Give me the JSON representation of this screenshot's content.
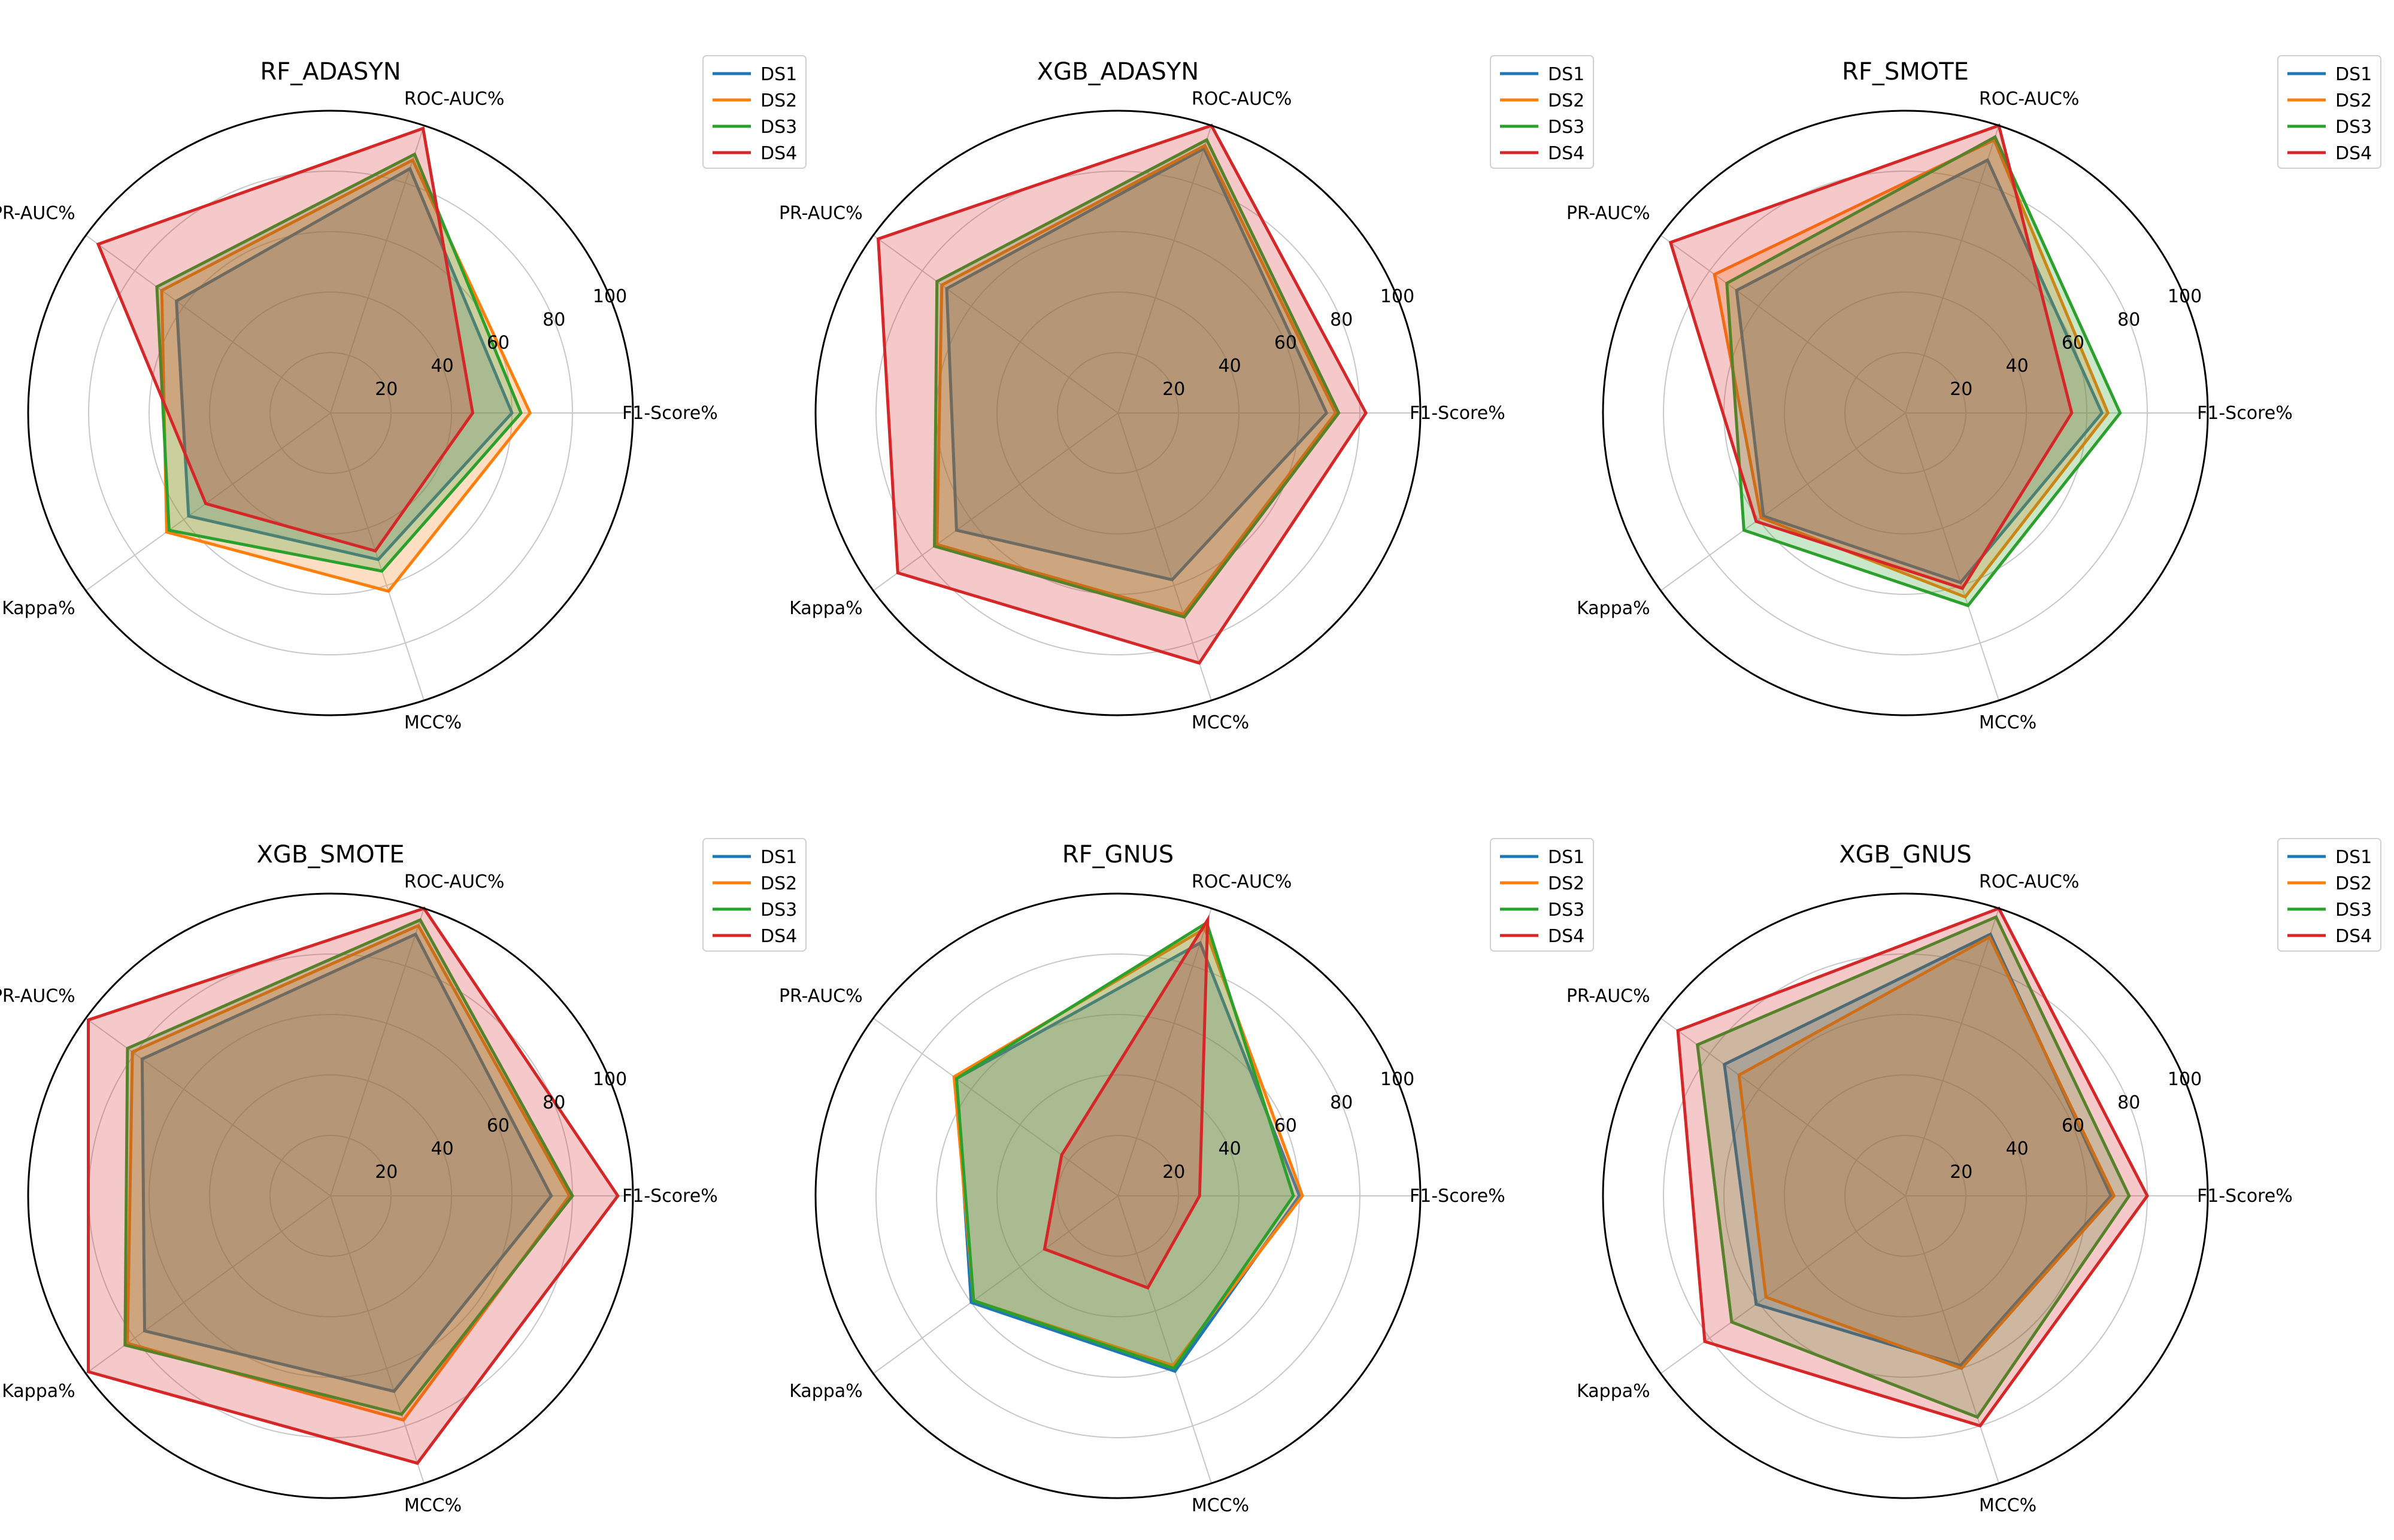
{
  "figure": {
    "legend_labels": [
      "DS1",
      "DS2",
      "DS3",
      "DS4"
    ],
    "series_colors": [
      "#1f77b4",
      "#ff7f0e",
      "#2ca02c",
      "#d62728"
    ],
    "radial_ticks": [
      "20",
      "40",
      "60",
      "80",
      "100"
    ]
  },
  "chart_data": [
    {
      "type": "radar",
      "title": "RF_ADASYN",
      "categories": [
        "F1-Score%",
        "ROC-AUC%",
        "PR-AUC%",
        "Kappa%",
        "MCC%"
      ],
      "rlim": [
        0,
        100
      ],
      "grid": true,
      "legend": "top-right",
      "series": [
        {
          "name": "DS1",
          "values": [
            60,
            85,
            63,
            58,
            51
          ]
        },
        {
          "name": "DS2",
          "values": [
            66,
            88,
            69,
            67,
            62
          ]
        },
        {
          "name": "DS3",
          "values": [
            63,
            90,
            71,
            66,
            55
          ]
        },
        {
          "name": "DS4",
          "values": [
            47,
            99,
            95,
            51,
            48
          ]
        }
      ]
    },
    {
      "type": "radar",
      "title": "XGB_ADASYN",
      "categories": [
        "F1-Score%",
        "ROC-AUC%",
        "PR-AUC%",
        "Kappa%",
        "MCC%"
      ],
      "rlim": [
        0,
        100
      ],
      "grid": true,
      "legend": "top-right",
      "series": [
        {
          "name": "DS1",
          "values": [
            69,
            92,
            70,
            66,
            58
          ]
        },
        {
          "name": "DS2",
          "values": [
            72,
            93,
            72,
            74,
            70
          ]
        },
        {
          "name": "DS3",
          "values": [
            73,
            95,
            74,
            75,
            71
          ]
        },
        {
          "name": "DS4",
          "values": [
            82,
            100,
            98,
            90,
            87
          ]
        }
      ]
    },
    {
      "type": "radar",
      "title": "RF_SMOTE",
      "categories": [
        "F1-Score%",
        "ROC-AUC%",
        "PR-AUC%",
        "Kappa%",
        "MCC%"
      ],
      "rlim": [
        0,
        100
      ],
      "grid": true,
      "legend": "top-right",
      "series": [
        {
          "name": "DS1",
          "values": [
            65,
            88,
            69,
            58,
            59
          ]
        },
        {
          "name": "DS2",
          "values": [
            67,
            95,
            78,
            59,
            64
          ]
        },
        {
          "name": "DS3",
          "values": [
            71,
            96,
            73,
            66,
            67
          ]
        },
        {
          "name": "DS4",
          "values": [
            55,
            100,
            96,
            61,
            61
          ]
        }
      ]
    },
    {
      "type": "radar",
      "title": "XGB_SMOTE",
      "categories": [
        "F1-Score%",
        "ROC-AUC%",
        "PR-AUC%",
        "Kappa%",
        "MCC%"
      ],
      "rlim": [
        0,
        100
      ],
      "grid": true,
      "legend": "top-right",
      "series": [
        {
          "name": "DS1",
          "values": [
            73,
            91,
            77,
            76,
            68
          ]
        },
        {
          "name": "DS2",
          "values": [
            79,
            94,
            81,
            83,
            78
          ]
        },
        {
          "name": "DS3",
          "values": [
            80,
            96,
            83,
            84,
            76
          ]
        },
        {
          "name": "DS4",
          "values": [
            95,
            100,
            99,
            99,
            93
          ]
        }
      ]
    },
    {
      "type": "radar",
      "title": "RF_GNUS",
      "categories": [
        "F1-Score%",
        "ROC-AUC%",
        "PR-AUC%",
        "Kappa%",
        "MCC%"
      ],
      "rlim": [
        0,
        100
      ],
      "grid": true,
      "legend": "top-right",
      "series": [
        {
          "name": "DS1",
          "values": [
            60,
            88,
            66,
            60,
            61
          ]
        },
        {
          "name": "DS2",
          "values": [
            61,
            93,
            67,
            59,
            59
          ]
        },
        {
          "name": "DS3",
          "values": [
            58,
            95,
            66,
            59,
            60
          ]
        },
        {
          "name": "DS4",
          "values": [
            27,
            96,
            23,
            30,
            32
          ]
        }
      ]
    },
    {
      "type": "radar",
      "title": "XGB_GNUS",
      "categories": [
        "F1-Score%",
        "ROC-AUC%",
        "PR-AUC%",
        "Kappa%",
        "MCC%"
      ],
      "rlim": [
        0,
        100
      ],
      "grid": true,
      "legend": "top-right",
      "series": [
        {
          "name": "DS1",
          "values": [
            68,
            91,
            74,
            61,
            59
          ]
        },
        {
          "name": "DS2",
          "values": [
            69,
            90,
            68,
            57,
            60
          ]
        },
        {
          "name": "DS3",
          "values": [
            74,
            97,
            85,
            71,
            77
          ]
        },
        {
          "name": "DS4",
          "values": [
            80,
            100,
            93,
            82,
            80
          ]
        }
      ]
    }
  ]
}
